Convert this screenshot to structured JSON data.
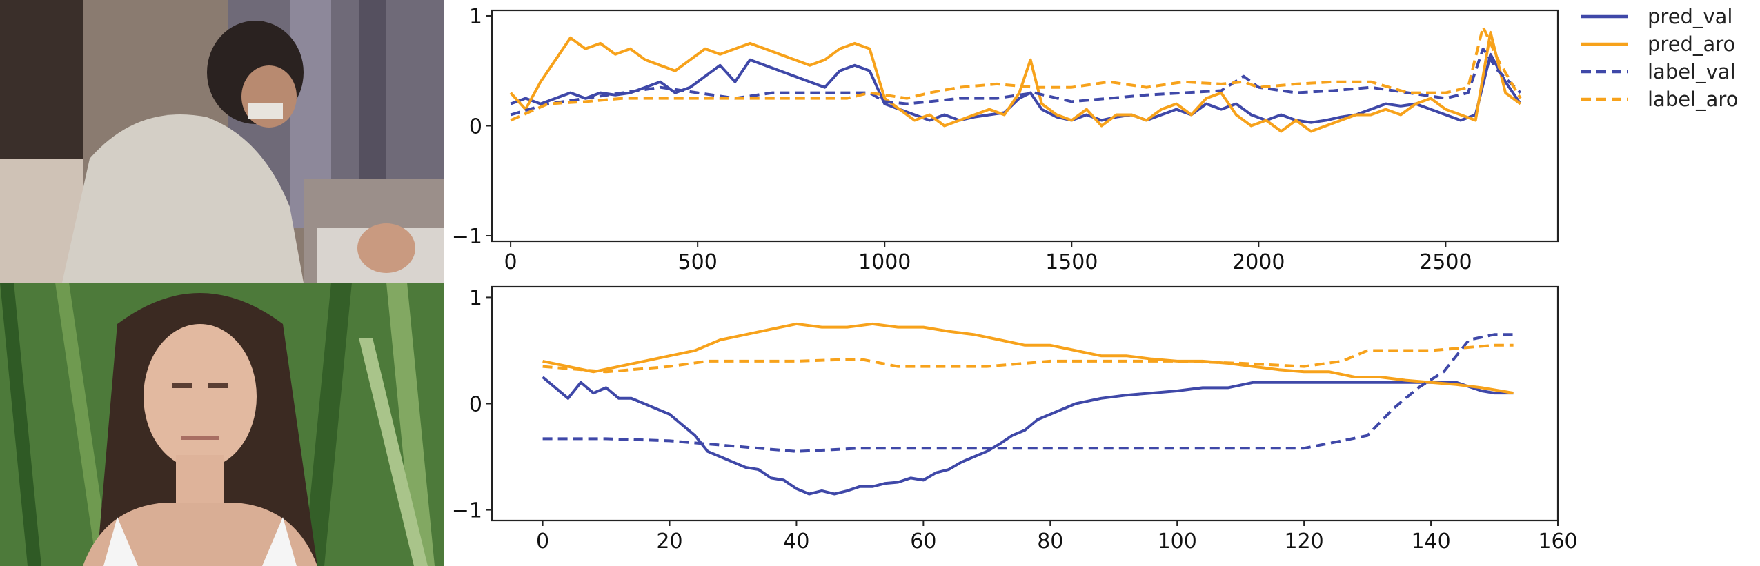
{
  "photos": [
    {
      "name": "photo-woman-changing-infant"
    },
    {
      "name": "photo-young-woman-grimacing"
    }
  ],
  "chart_data": [
    {
      "type": "line",
      "xlim": [
        -50,
        2800
      ],
      "ylim": [
        -1.05,
        1.05
      ],
      "xticks": [
        0,
        500,
        1000,
        1500,
        2000,
        2500
      ],
      "yticks": [
        -1,
        0,
        1
      ],
      "legend_position": "outside-right-top",
      "series": [
        {
          "name": "pred_val",
          "color": "#3f48a8",
          "style": "solid",
          "x": [
            0,
            40,
            80,
            120,
            160,
            200,
            240,
            280,
            320,
            360,
            400,
            440,
            480,
            520,
            560,
            600,
            640,
            680,
            720,
            760,
            800,
            840,
            880,
            920,
            960,
            1000,
            1040,
            1080,
            1120,
            1160,
            1200,
            1240,
            1280,
            1320,
            1360,
            1390,
            1420,
            1460,
            1500,
            1540,
            1580,
            1620,
            1660,
            1700,
            1740,
            1780,
            1820,
            1860,
            1900,
            1940,
            1980,
            2020,
            2060,
            2100,
            2140,
            2180,
            2220,
            2260,
            2300,
            2340,
            2380,
            2420,
            2460,
            2500,
            2540,
            2580,
            2620,
            2660,
            2700
          ],
          "y": [
            0.2,
            0.25,
            0.2,
            0.25,
            0.3,
            0.25,
            0.3,
            0.28,
            0.3,
            0.35,
            0.4,
            0.3,
            0.35,
            0.45,
            0.55,
            0.4,
            0.6,
            0.55,
            0.5,
            0.45,
            0.4,
            0.35,
            0.5,
            0.55,
            0.5,
            0.2,
            0.15,
            0.1,
            0.05,
            0.1,
            0.05,
            0.08,
            0.1,
            0.12,
            0.25,
            0.3,
            0.15,
            0.08,
            0.05,
            0.1,
            0.05,
            0.08,
            0.1,
            0.05,
            0.1,
            0.15,
            0.1,
            0.2,
            0.15,
            0.2,
            0.1,
            0.05,
            0.1,
            0.05,
            0.03,
            0.05,
            0.08,
            0.1,
            0.15,
            0.2,
            0.18,
            0.2,
            0.15,
            0.1,
            0.05,
            0.1,
            0.65,
            0.4,
            0.2
          ]
        },
        {
          "name": "pred_aro",
          "color": "#f7a21b",
          "style": "solid",
          "x": [
            0,
            40,
            80,
            120,
            160,
            200,
            240,
            280,
            320,
            360,
            400,
            440,
            480,
            520,
            560,
            600,
            640,
            680,
            720,
            760,
            800,
            840,
            880,
            920,
            960,
            1000,
            1040,
            1080,
            1120,
            1160,
            1200,
            1240,
            1280,
            1320,
            1360,
            1390,
            1420,
            1460,
            1500,
            1540,
            1580,
            1620,
            1660,
            1700,
            1740,
            1780,
            1820,
            1860,
            1900,
            1940,
            1980,
            2020,
            2060,
            2100,
            2140,
            2180,
            2220,
            2260,
            2300,
            2340,
            2380,
            2420,
            2460,
            2500,
            2540,
            2580,
            2620,
            2660,
            2700
          ],
          "y": [
            0.3,
            0.15,
            0.4,
            0.6,
            0.8,
            0.7,
            0.75,
            0.65,
            0.7,
            0.6,
            0.55,
            0.5,
            0.6,
            0.7,
            0.65,
            0.7,
            0.75,
            0.7,
            0.65,
            0.6,
            0.55,
            0.6,
            0.7,
            0.75,
            0.7,
            0.25,
            0.15,
            0.05,
            0.1,
            0.0,
            0.05,
            0.1,
            0.15,
            0.1,
            0.3,
            0.6,
            0.2,
            0.1,
            0.05,
            0.15,
            0.0,
            0.1,
            0.1,
            0.05,
            0.15,
            0.2,
            0.1,
            0.25,
            0.3,
            0.1,
            0.0,
            0.05,
            -0.05,
            0.05,
            -0.05,
            0.0,
            0.05,
            0.1,
            0.1,
            0.15,
            0.1,
            0.2,
            0.25,
            0.15,
            0.1,
            0.05,
            0.85,
            0.3,
            0.2
          ]
        },
        {
          "name": "label_val",
          "color": "#3f48a8",
          "style": "dashed",
          "x": [
            0,
            100,
            200,
            300,
            400,
            500,
            600,
            700,
            800,
            900,
            960,
            1000,
            1060,
            1120,
            1200,
            1300,
            1400,
            1500,
            1600,
            1700,
            1800,
            1900,
            1960,
            2000,
            2100,
            2200,
            2300,
            2400,
            2500,
            2560,
            2600,
            2640,
            2700
          ],
          "y": [
            0.1,
            0.2,
            0.25,
            0.3,
            0.35,
            0.3,
            0.25,
            0.3,
            0.3,
            0.3,
            0.3,
            0.22,
            0.2,
            0.22,
            0.25,
            0.25,
            0.3,
            0.22,
            0.25,
            0.28,
            0.3,
            0.32,
            0.45,
            0.35,
            0.3,
            0.32,
            0.35,
            0.3,
            0.25,
            0.3,
            0.7,
            0.5,
            0.3
          ]
        },
        {
          "name": "label_aro",
          "color": "#f7a21b",
          "style": "dashed",
          "x": [
            0,
            100,
            200,
            300,
            400,
            500,
            600,
            700,
            800,
            900,
            960,
            1000,
            1060,
            1120,
            1200,
            1300,
            1400,
            1500,
            1600,
            1700,
            1800,
            1900,
            1960,
            2000,
            2100,
            2200,
            2300,
            2400,
            2500,
            2560,
            2600,
            2640,
            2700
          ],
          "y": [
            0.05,
            0.2,
            0.22,
            0.25,
            0.25,
            0.25,
            0.25,
            0.25,
            0.25,
            0.25,
            0.3,
            0.28,
            0.25,
            0.3,
            0.35,
            0.38,
            0.35,
            0.35,
            0.4,
            0.35,
            0.4,
            0.38,
            0.4,
            0.35,
            0.38,
            0.4,
            0.4,
            0.3,
            0.3,
            0.35,
            0.9,
            0.6,
            0.25
          ]
        }
      ]
    },
    {
      "type": "line",
      "xlim": [
        -8,
        160
      ],
      "ylim": [
        -1.1,
        1.1
      ],
      "xticks": [
        0,
        20,
        40,
        60,
        80,
        100,
        120,
        140,
        160
      ],
      "yticks": [
        -1,
        0,
        1
      ],
      "series": [
        {
          "name": "pred_val",
          "color": "#3f48a8",
          "style": "solid",
          "x": [
            0,
            2,
            4,
            6,
            8,
            10,
            12,
            14,
            16,
            18,
            20,
            22,
            24,
            26,
            28,
            30,
            32,
            34,
            36,
            38,
            40,
            42,
            44,
            46,
            48,
            50,
            52,
            54,
            56,
            58,
            60,
            62,
            64,
            66,
            68,
            70,
            72,
            74,
            76,
            78,
            80,
            84,
            88,
            92,
            96,
            100,
            104,
            108,
            112,
            116,
            120,
            124,
            128,
            132,
            136,
            140,
            144,
            148,
            150,
            153
          ],
          "y": [
            0.25,
            0.15,
            0.05,
            0.2,
            0.1,
            0.15,
            0.05,
            0.05,
            0.0,
            -0.05,
            -0.1,
            -0.2,
            -0.3,
            -0.45,
            -0.5,
            -0.55,
            -0.6,
            -0.62,
            -0.7,
            -0.72,
            -0.8,
            -0.85,
            -0.82,
            -0.85,
            -0.82,
            -0.78,
            -0.78,
            -0.75,
            -0.74,
            -0.7,
            -0.72,
            -0.65,
            -0.62,
            -0.55,
            -0.5,
            -0.45,
            -0.38,
            -0.3,
            -0.25,
            -0.15,
            -0.1,
            0.0,
            0.05,
            0.08,
            0.1,
            0.12,
            0.15,
            0.15,
            0.2,
            0.2,
            0.2,
            0.2,
            0.2,
            0.2,
            0.2,
            0.2,
            0.2,
            0.12,
            0.1,
            0.1
          ]
        },
        {
          "name": "pred_aro",
          "color": "#f7a21b",
          "style": "solid",
          "x": [
            0,
            4,
            8,
            12,
            16,
            20,
            24,
            28,
            32,
            36,
            40,
            44,
            48,
            52,
            56,
            60,
            64,
            68,
            72,
            76,
            80,
            84,
            88,
            92,
            96,
            100,
            104,
            108,
            112,
            116,
            120,
            124,
            128,
            132,
            136,
            140,
            144,
            148,
            153
          ],
          "y": [
            0.4,
            0.35,
            0.3,
            0.35,
            0.4,
            0.45,
            0.5,
            0.6,
            0.65,
            0.7,
            0.75,
            0.72,
            0.72,
            0.75,
            0.72,
            0.72,
            0.68,
            0.65,
            0.6,
            0.55,
            0.55,
            0.5,
            0.45,
            0.45,
            0.42,
            0.4,
            0.4,
            0.38,
            0.35,
            0.32,
            0.3,
            0.3,
            0.25,
            0.25,
            0.22,
            0.2,
            0.18,
            0.15,
            0.1
          ]
        },
        {
          "name": "label_val",
          "color": "#3f48a8",
          "style": "dashed",
          "x": [
            0,
            10,
            20,
            30,
            40,
            50,
            60,
            70,
            80,
            90,
            100,
            110,
            120,
            126,
            130,
            134,
            138,
            142,
            146,
            150,
            153
          ],
          "y": [
            -0.33,
            -0.33,
            -0.35,
            -0.4,
            -0.45,
            -0.42,
            -0.42,
            -0.42,
            -0.42,
            -0.42,
            -0.42,
            -0.42,
            -0.42,
            -0.35,
            -0.3,
            -0.05,
            0.15,
            0.3,
            0.6,
            0.65,
            0.65
          ]
        },
        {
          "name": "label_aro",
          "color": "#f7a21b",
          "style": "dashed",
          "x": [
            0,
            10,
            20,
            26,
            30,
            40,
            50,
            56,
            60,
            70,
            80,
            90,
            100,
            110,
            120,
            126,
            130,
            140,
            150,
            153
          ],
          "y": [
            0.35,
            0.3,
            0.35,
            0.4,
            0.4,
            0.4,
            0.42,
            0.35,
            0.35,
            0.35,
            0.4,
            0.4,
            0.4,
            0.38,
            0.35,
            0.4,
            0.5,
            0.5,
            0.55,
            0.55
          ]
        }
      ]
    }
  ],
  "legend": [
    {
      "label": "pred_val",
      "color": "#3f48a8",
      "style": "solid"
    },
    {
      "label": "pred_aro",
      "color": "#f7a21b",
      "style": "solid"
    },
    {
      "label": "label_val",
      "color": "#3f48a8",
      "style": "dashed"
    },
    {
      "label": "label_aro",
      "color": "#f7a21b",
      "style": "dashed"
    }
  ]
}
